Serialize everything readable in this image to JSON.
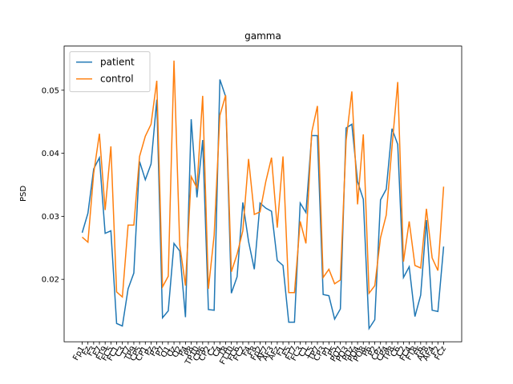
{
  "chart_data": {
    "type": "line",
    "title": "gamma",
    "y_label": "PSD",
    "categories": [
      "Fp1",
      "Fz",
      "F3",
      "F7",
      "FT9",
      "FC5",
      "FC1",
      "C3",
      "T7",
      "TP9",
      "CP5",
      "CP1",
      "Pz",
      "P3",
      "P7",
      "O1",
      "Oz",
      "O2",
      "P4",
      "P8",
      "TP10",
      "CP6",
      "CP2",
      "Cz",
      "C4",
      "T8",
      "FT10",
      "FC6",
      "FC2",
      "F4",
      "F8",
      "Fp2",
      "AF7",
      "AF3",
      "AFz",
      "F1",
      "F5",
      "FT7",
      "FC3",
      "C1",
      "C5",
      "TP7",
      "CP3",
      "P1",
      "P5",
      "PO7",
      "PO3",
      "POz",
      "PO4",
      "PO8",
      "P6",
      "P2",
      "CPz",
      "CP4",
      "TP8",
      "C6",
      "C2",
      "FC4",
      "FT8",
      "F6",
      "AF8",
      "AF4",
      "F2",
      "FCz"
    ],
    "series": [
      {
        "name": "patient",
        "color": "#1f77b4",
        "values": [
          0.0274,
          0.0305,
          0.0375,
          0.0393,
          0.0273,
          0.0277,
          0.013,
          0.0126,
          0.0185,
          0.021,
          0.0387,
          0.0358,
          0.0383,
          0.0485,
          0.0139,
          0.015,
          0.0257,
          0.0245,
          0.014,
          0.0454,
          0.033,
          0.0421,
          0.0152,
          0.0151,
          0.0517,
          0.049,
          0.0178,
          0.0204,
          0.0322,
          0.026,
          0.0216,
          0.0321,
          0.0313,
          0.0308,
          0.023,
          0.0222,
          0.0132,
          0.0132,
          0.0321,
          0.0306,
          0.0428,
          0.0428,
          0.0176,
          0.0174,
          0.0137,
          0.0153,
          0.044,
          0.0446,
          0.0355,
          0.0327,
          0.0122,
          0.0136,
          0.0326,
          0.0343,
          0.0439,
          0.0414,
          0.0203,
          0.022,
          0.0141,
          0.0175,
          0.0294,
          0.0151,
          0.0149,
          0.0252
        ]
      },
      {
        "name": "control",
        "color": "#ff7f0e",
        "values": [
          0.0267,
          0.0259,
          0.0368,
          0.0431,
          0.031,
          0.0411,
          0.018,
          0.0172,
          0.0286,
          0.0286,
          0.0395,
          0.0427,
          0.0446,
          0.0515,
          0.0188,
          0.0205,
          0.0547,
          0.0255,
          0.019,
          0.0363,
          0.0345,
          0.0491,
          0.0185,
          0.027,
          0.046,
          0.0492,
          0.0212,
          0.024,
          0.0277,
          0.0391,
          0.0303,
          0.0307,
          0.0355,
          0.0393,
          0.0282,
          0.0395,
          0.0179,
          0.0179,
          0.0292,
          0.0257,
          0.0433,
          0.0475,
          0.0203,
          0.0216,
          0.0193,
          0.0199,
          0.042,
          0.0498,
          0.0319,
          0.043,
          0.0178,
          0.019,
          0.0266,
          0.0302,
          0.041,
          0.0513,
          0.0228,
          0.0292,
          0.0222,
          0.0218,
          0.0312,
          0.0234,
          0.0214,
          0.0347
        ]
      }
    ],
    "ylim": [
      0.0101,
      0.057
    ],
    "yticks": [
      0.02,
      0.03,
      0.04,
      0.05
    ],
    "legend": "upper left"
  }
}
